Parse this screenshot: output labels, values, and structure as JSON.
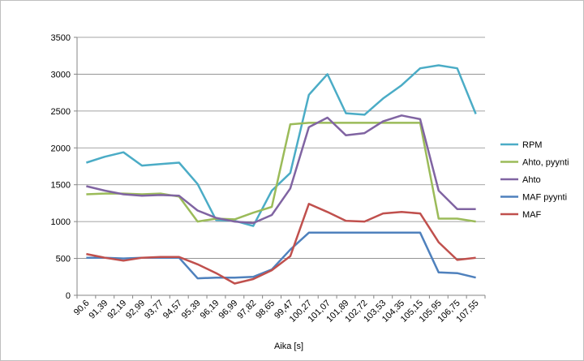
{
  "chart_data": {
    "type": "line",
    "title": "",
    "xlabel": "Aika [s]",
    "ylabel": "",
    "ylim": [
      0,
      3500
    ],
    "yticks": [
      0,
      500,
      1000,
      1500,
      2000,
      2500,
      3000,
      3500
    ],
    "grid": "horizontal",
    "legend": "right",
    "categories": [
      "90,6",
      "91,39",
      "92,19",
      "92,99",
      "93,77",
      "94,57",
      "95,39",
      "96,19",
      "96,99",
      "97,82",
      "98,65",
      "99,47",
      "100,27",
      "101,07",
      "101,89",
      "102,72",
      "103,53",
      "104,35",
      "105,15",
      "105,95",
      "106,75",
      "107,55"
    ],
    "series": [
      {
        "name": "RPM",
        "color": "#4bacc6",
        "values": [
          1800,
          1880,
          1940,
          1760,
          1780,
          1800,
          1510,
          1020,
          1010,
          940,
          1420,
          1660,
          2720,
          3000,
          2470,
          2450,
          2670,
          2850,
          3080,
          3120,
          3080,
          2460
        ]
      },
      {
        "name": "Ahto, pyynti",
        "color": "#9bbb59",
        "values": [
          1370,
          1380,
          1380,
          1370,
          1380,
          1340,
          1000,
          1040,
          1030,
          1120,
          1200,
          2320,
          2340,
          2340,
          2340,
          2340,
          2340,
          2340,
          2340,
          1040,
          1040,
          1000
        ]
      },
      {
        "name": "Ahto",
        "color": "#8064a2",
        "values": [
          1480,
          1420,
          1370,
          1350,
          1360,
          1350,
          1150,
          1050,
          1000,
          980,
          1090,
          1450,
          2280,
          2410,
          2170,
          2200,
          2360,
          2440,
          2390,
          1420,
          1170,
          1170
        ]
      },
      {
        "name": "MAF pyynti",
        "color": "#4f81bd",
        "values": [
          510,
          510,
          500,
          510,
          510,
          510,
          230,
          240,
          240,
          250,
          350,
          620,
          850,
          850,
          850,
          850,
          850,
          850,
          850,
          310,
          300,
          240
        ]
      },
      {
        "name": "MAF",
        "color": "#c0504d",
        "values": [
          560,
          510,
          470,
          510,
          520,
          520,
          420,
          300,
          160,
          220,
          340,
          530,
          1240,
          1130,
          1010,
          1000,
          1110,
          1130,
          1110,
          720,
          480,
          510
        ]
      }
    ]
  }
}
